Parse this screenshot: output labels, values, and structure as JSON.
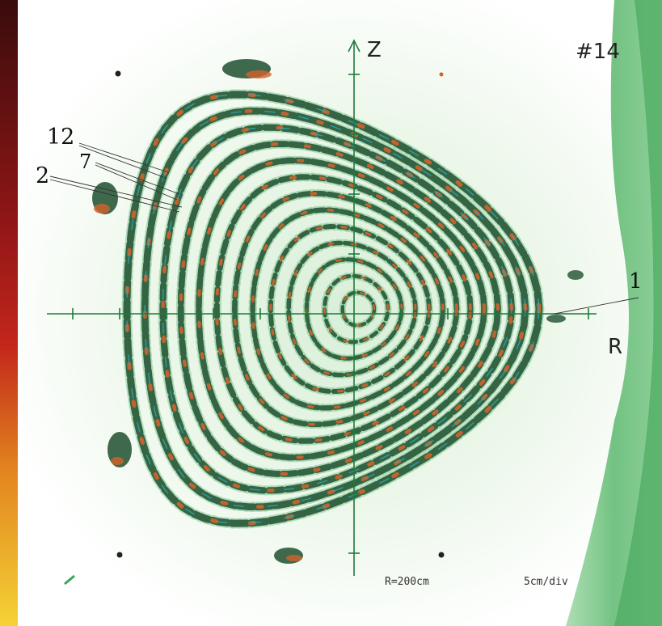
{
  "labels": {
    "shot_number": "#14",
    "z_axis": "Z",
    "r_axis": "R",
    "surface_12": "12",
    "surface_7": "7",
    "surface_2": "2",
    "surface_1": "1",
    "major_radius": "R=200cm",
    "scale": "5cm/div"
  },
  "colors": {
    "axis": "#1f7a3a",
    "surface_dark": "#1e4f2f",
    "surface_orange": "#d4622b",
    "surface_green": "#3aa55a",
    "surface_cyan": "#2ea6b8",
    "background_glow": "#e8f5e6",
    "left_strip": "#b3121b",
    "right_band": "#58b76a"
  }
}
